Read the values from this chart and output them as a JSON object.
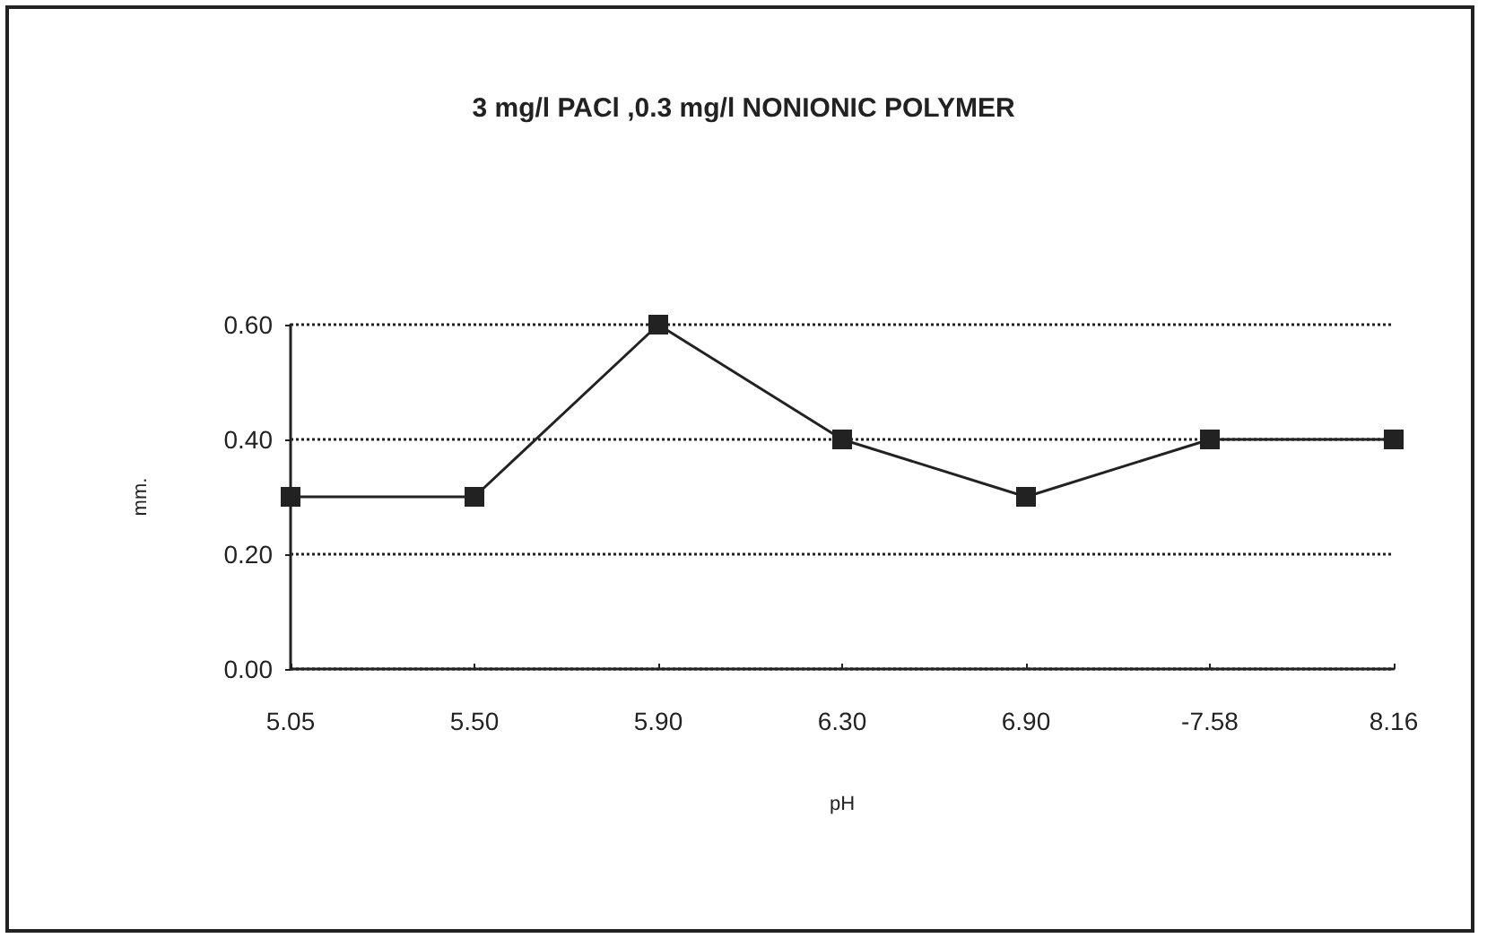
{
  "chart_data": {
    "type": "line",
    "title": "3 mg/l PACl ,0.3 mg/l NONIONIC POLYMER",
    "xlabel": "pH",
    "ylabel": "mm.",
    "categories": [
      "5.05",
      "5.50",
      "5.90",
      "6.30",
      "6.90",
      "-7.58",
      "8.16"
    ],
    "series": [
      {
        "color": "#222222",
        "values": [
          0.3,
          0.3,
          0.6,
          0.4,
          0.3,
          0.4,
          0.4
        ]
      }
    ],
    "ylim": [
      0,
      0.6
    ],
    "yticks": [
      {
        "value": 0,
        "label": "0.00"
      },
      {
        "value": 0.2,
        "label": "0.20"
      },
      {
        "value": 0.4,
        "label": "0.40"
      },
      {
        "value": 0.6,
        "label": "0.60"
      }
    ],
    "grid": "y",
    "marker": "square",
    "line_style": "solid"
  }
}
